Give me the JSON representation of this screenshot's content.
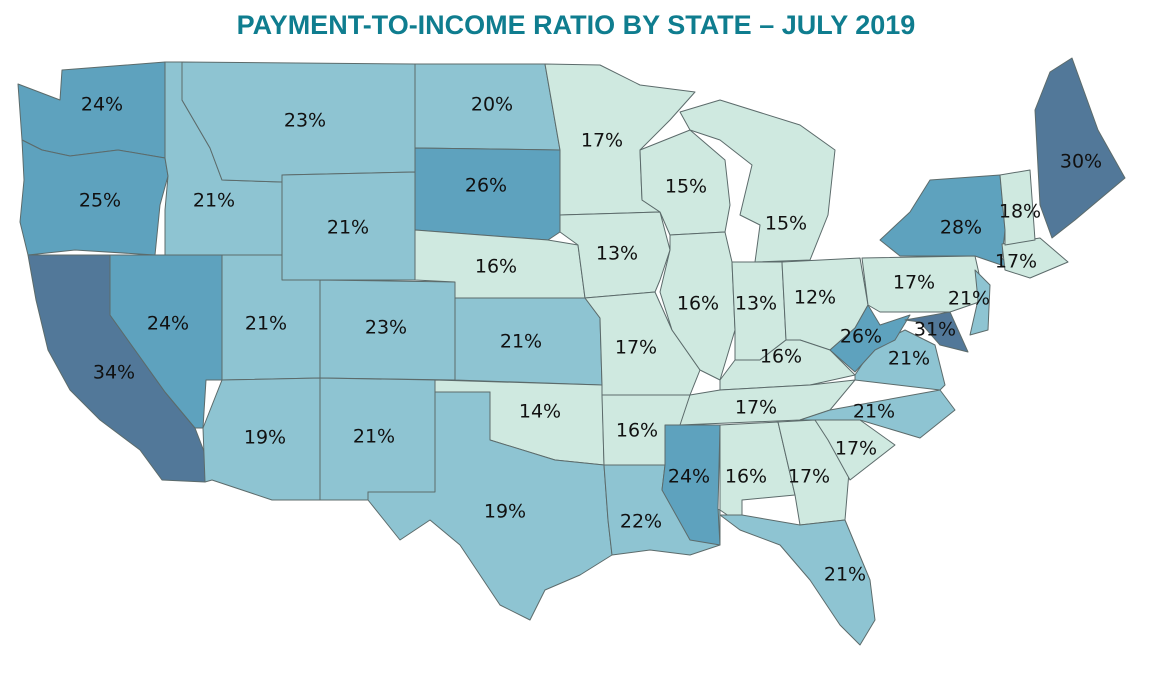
{
  "title": "PAYMENT-TO-INCOME RATIO BY STATE – JULY 2019",
  "colors": {
    "title": "#0f7d8f",
    "bins": [
      {
        "min": 0,
        "max": 18,
        "color": "#cfe9e0"
      },
      {
        "min": 19,
        "max": 23,
        "color": "#8ec4d2"
      },
      {
        "min": 24,
        "max": 28,
        "color": "#5ea2be"
      },
      {
        "min": 29,
        "max": 40,
        "color": "#527899"
      }
    ],
    "border": "#5c6b6b"
  },
  "states": [
    {
      "code": "WA",
      "value": "24%"
    },
    {
      "code": "OR",
      "value": "25%"
    },
    {
      "code": "CA",
      "value": "34%"
    },
    {
      "code": "ID",
      "value": "21%"
    },
    {
      "code": "NV",
      "value": "24%"
    },
    {
      "code": "MT",
      "value": "23%"
    },
    {
      "code": "WY",
      "value": "21%"
    },
    {
      "code": "UT",
      "value": "21%"
    },
    {
      "code": "AZ",
      "value": "19%"
    },
    {
      "code": "CO",
      "value": "23%"
    },
    {
      "code": "NM",
      "value": "21%"
    },
    {
      "code": "ND",
      "value": "20%"
    },
    {
      "code": "SD",
      "value": "26%"
    },
    {
      "code": "NE",
      "value": "16%"
    },
    {
      "code": "KS",
      "value": "21%"
    },
    {
      "code": "OK",
      "value": "14%"
    },
    {
      "code": "TX",
      "value": "19%"
    },
    {
      "code": "MN",
      "value": "17%"
    },
    {
      "code": "IA",
      "value": "13%"
    },
    {
      "code": "MO",
      "value": "17%"
    },
    {
      "code": "AR",
      "value": "16%"
    },
    {
      "code": "LA",
      "value": "22%"
    },
    {
      "code": "WI",
      "value": "15%"
    },
    {
      "code": "IL",
      "value": "16%"
    },
    {
      "code": "MI",
      "value": "15%"
    },
    {
      "code": "IN",
      "value": "13%"
    },
    {
      "code": "OH",
      "value": "12%"
    },
    {
      "code": "KY",
      "value": "16%"
    },
    {
      "code": "TN",
      "value": "17%"
    },
    {
      "code": "MS",
      "value": "24%"
    },
    {
      "code": "AL",
      "value": "16%"
    },
    {
      "code": "GA",
      "value": "17%"
    },
    {
      "code": "FL",
      "value": "21%"
    },
    {
      "code": "SC",
      "value": "17%"
    },
    {
      "code": "NC",
      "value": "21%"
    },
    {
      "code": "VA",
      "value": "21%"
    },
    {
      "code": "WV",
      "value": "26%"
    },
    {
      "code": "MD",
      "value": "31%"
    },
    {
      "code": "PA",
      "value": "17%"
    },
    {
      "code": "NJ",
      "value": "21%"
    },
    {
      "code": "NY",
      "value": "28%"
    },
    {
      "code": "CT",
      "value": "17%"
    },
    {
      "code": "VT",
      "value": "18%"
    },
    {
      "code": "ME",
      "value": "30%"
    }
  ]
}
